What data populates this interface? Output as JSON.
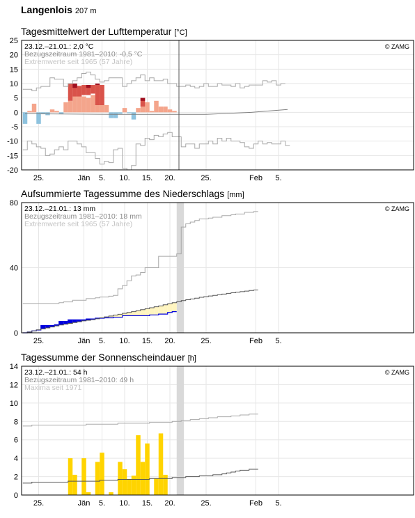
{
  "page": {
    "station": "Langenlois",
    "elevation": "207 m"
  },
  "colors": {
    "warm": "#f4a58c",
    "warm_extreme": "#d9534a",
    "warm_record": "#a01020",
    "cold": "#8ec2de",
    "precip": "#0000dd",
    "precip_surplus": "#fff5c0",
    "precip_deficit": "#dcefd2",
    "sun": "#ffd400",
    "ref_line": "#7f7f7f",
    "extreme_line": "#a8a8a8",
    "grid": "#e6e6e6",
    "today_band": "#d9d9d9"
  },
  "chart_data": [
    {
      "id": "temp",
      "type": "bar",
      "title": "Tagesmittelwert der Lufttemperatur",
      "unit": "[°C]",
      "copyright": "© ZAMG",
      "legend": [
        "23.12.–21.01.: 2,0 °C",
        "Bezugszeitraum 1981–2010: -0,5 °C",
        "Extremwerte seit 1965 (57 Jahre)"
      ],
      "ylim": [
        -20,
        25
      ],
      "yticks": [
        25,
        20,
        15,
        10,
        5,
        0,
        -5,
        -10,
        -15,
        -20
      ],
      "xlim": [
        0,
        75
      ],
      "xticks": [
        {
          "x": 3,
          "label": "25."
        },
        {
          "x": 13,
          "label": "Jän"
        },
        {
          "x": 17,
          "label": "5."
        },
        {
          "x": 22,
          "label": "10."
        },
        {
          "x": 27,
          "label": "15."
        },
        {
          "x": 32,
          "label": "20."
        },
        {
          "x": 40,
          "label": "25."
        },
        {
          "x": 51,
          "label": "Feb"
        },
        {
          "x": 56,
          "label": "5."
        }
      ],
      "today_x": 34,
      "x": [
        0,
        1,
        2,
        3,
        4,
        5,
        6,
        7,
        8,
        9,
        10,
        11,
        12,
        13,
        14,
        15,
        16,
        17,
        18,
        19,
        20,
        21,
        22,
        23,
        24,
        25,
        26,
        27,
        28,
        29,
        30,
        31,
        32,
        33
      ],
      "values": [
        -4,
        0.5,
        3,
        -4,
        -0.5,
        -1,
        1,
        0.5,
        -0.5,
        3.5,
        4,
        10,
        9,
        5.5,
        5,
        6,
        9.5,
        9.5,
        2.5,
        -2,
        -2,
        -0.5,
        1.5,
        -0.3,
        -2.5,
        1.5,
        3.5,
        3.5,
        0.5,
        4,
        2,
        2,
        1,
        0.5
      ],
      "extreme_bars": [
        {
          "x": 10,
          "base": 4,
          "top": 10
        },
        {
          "x": 11,
          "base": 5.5,
          "top": 10
        },
        {
          "x": 12,
          "base": 5.5,
          "top": 9.2
        },
        {
          "x": 13,
          "base": 6,
          "top": 9.5
        },
        {
          "x": 14,
          "base": 6,
          "top": 9.5
        },
        {
          "x": 15,
          "base": 6.5,
          "top": 9.5
        },
        {
          "x": 16,
          "base": 2.5,
          "top": 9.5
        },
        {
          "x": 17,
          "base": 2.5,
          "top": 9.5
        },
        {
          "x": 26,
          "base": 2,
          "top": 5
        }
      ],
      "record_bars": [
        {
          "x": 11,
          "base": 8.5,
          "top": 10
        },
        {
          "x": 14,
          "base": 8.5,
          "top": 9.5
        },
        {
          "x": 16,
          "base": 9.5,
          "top": 10
        },
        {
          "x": 26,
          "base": 4,
          "top": 5
        }
      ],
      "ref_line": [
        [
          0,
          -0.5
        ],
        [
          20,
          -0.7
        ],
        [
          40,
          -0.7
        ],
        [
          50,
          0
        ],
        [
          58,
          1
        ]
      ],
      "max_line": [
        8,
        8,
        7.5,
        8.5,
        9,
        9,
        12,
        11.5,
        11.5,
        9,
        10,
        11,
        12,
        13.5,
        14,
        13,
        11.5,
        10.5,
        11,
        12,
        12,
        12,
        9,
        10,
        11,
        12,
        13,
        11,
        12,
        11,
        11,
        11.5,
        10,
        10,
        9,
        9,
        9.5,
        9,
        8.5,
        9,
        10,
        9,
        9,
        10,
        9.5,
        9.5,
        9,
        10,
        8.5,
        9,
        9.5,
        9.5,
        9.5,
        11,
        10.5,
        11,
        9.5,
        10
      ],
      "min_line": [
        -13,
        -10,
        -11,
        -12,
        -12.5,
        -15,
        -14.5,
        -13,
        -12,
        -13,
        -10,
        -10,
        -11,
        -12,
        -14,
        -14,
        -16,
        -18,
        -17,
        -17.5,
        -13,
        -12.5,
        -19.5,
        -20,
        -18.5,
        -11,
        -11.5,
        -9,
        -9.5,
        -8,
        -8.5,
        -7.5,
        -7,
        -8.5,
        -8.5,
        -12,
        -11,
        -11,
        -12.5,
        -11,
        -11,
        -10,
        -11,
        -9,
        -10,
        -9,
        -10,
        -10,
        -10.5,
        -12,
        -12.5,
        -11,
        -10,
        -11,
        -10.5,
        -11,
        -11,
        -10,
        -11.5
      ]
    },
    {
      "id": "precip",
      "type": "area",
      "title": "Aufsummierte Tagessumme des Niederschlags",
      "unit": "[mm]",
      "copyright": "© ZAMG",
      "legend": [
        "23.12.–21.01.: 13 mm",
        "Bezugszeitraum 1981–2010: 18 mm",
        "Extremwerte seit 1965 (57 Jahre)"
      ],
      "ylim": [
        0,
        80
      ],
      "yticks": [
        80,
        40,
        0
      ],
      "xticks": [
        {
          "x": 3,
          "label": "25."
        },
        {
          "x": 13,
          "label": "Jän"
        },
        {
          "x": 17,
          "label": "5."
        },
        {
          "x": 22,
          "label": "10."
        },
        {
          "x": 27,
          "label": "15."
        },
        {
          "x": 32,
          "label": "20."
        },
        {
          "x": 40,
          "label": "25."
        },
        {
          "x": 51,
          "label": "Feb"
        },
        {
          "x": 56,
          "label": "5."
        }
      ],
      "today_x": 34,
      "cumulative": [
        0,
        0.5,
        1.2,
        1.7,
        4.5,
        4.5,
        4.5,
        5,
        7,
        7,
        8,
        8,
        8,
        8,
        8.5,
        8.5,
        9,
        9,
        9.2,
        9.2,
        9.5,
        9.5,
        10.5,
        10.5,
        10.5,
        10.5,
        10.5,
        10.5,
        11,
        11,
        11.5,
        11.5,
        12.5,
        13
      ],
      "reference": [
        0,
        0.5,
        1.2,
        1.8,
        2.4,
        3,
        3.6,
        4.2,
        4.8,
        5.3,
        5.8,
        6.3,
        6.8,
        7.3,
        7.7,
        8.1,
        8.6,
        9.2,
        9.8,
        10.3,
        10.9,
        11.4,
        12,
        12.5,
        13,
        13.6,
        14.2,
        14.8,
        15.4,
        16,
        16.5,
        17.2,
        17.9,
        18.5,
        19.1,
        19.8,
        20.3,
        20.8,
        21.3,
        21.8,
        22.2,
        22.6,
        23,
        23.4,
        23.8,
        24.2,
        24.6,
        25,
        25.3,
        25.6,
        26,
        26.3
      ],
      "max_line": [
        18,
        18,
        18,
        18,
        18,
        18,
        18,
        18,
        18.5,
        19,
        19,
        20,
        20,
        20,
        21,
        21,
        21.5,
        22,
        22,
        22.5,
        23,
        27,
        29,
        32,
        35,
        35.5,
        37,
        40,
        40,
        40,
        47,
        47,
        47,
        47,
        48.5,
        65,
        67,
        68,
        69,
        70,
        70,
        70.5,
        71,
        71,
        72,
        72,
        72.5,
        73,
        73,
        74,
        74,
        74.5
      ]
    },
    {
      "id": "sun",
      "type": "bar",
      "title": "Tagessumme der Sonnenscheindauer",
      "unit": "[h]",
      "copyright": "© ZAMG",
      "legend": [
        "23.12.–21.01.: 54 h",
        "Bezugszeitraum 1981–2010: 49 h",
        "Maxima seit 1971"
      ],
      "ylim": [
        0,
        14
      ],
      "yticks": [
        14,
        12,
        10,
        8,
        6,
        4,
        2,
        0
      ],
      "xticks": [
        {
          "x": 3,
          "label": "25."
        },
        {
          "x": 13,
          "label": "Jän"
        },
        {
          "x": 17,
          "label": "5."
        },
        {
          "x": 22,
          "label": "10."
        },
        {
          "x": 27,
          "label": "15."
        },
        {
          "x": 32,
          "label": "20."
        },
        {
          "x": 40,
          "label": "25."
        },
        {
          "x": 51,
          "label": "Feb"
        },
        {
          "x": 56,
          "label": "5."
        }
      ],
      "today_x": 34,
      "values": [
        0,
        0,
        0,
        0,
        0,
        0,
        0,
        0,
        0,
        0,
        4,
        2.2,
        0,
        4,
        0.3,
        0,
        3.6,
        4.6,
        0,
        0.3,
        0,
        3.6,
        2.8,
        1.7,
        2.1,
        6.5,
        3.6,
        5.6,
        0,
        1.8,
        6.7,
        2.2,
        0,
        0
      ],
      "reference": [
        1.3,
        1.3,
        1.4,
        1.4,
        1.4,
        1.4,
        1.4,
        1.4,
        1.4,
        1.4,
        1.5,
        1.5,
        1.5,
        1.5,
        1.5,
        1.5,
        1.5,
        1.6,
        1.6,
        1.6,
        1.6,
        1.7,
        1.7,
        1.7,
        1.7,
        1.7,
        1.7,
        1.7,
        1.8,
        1.8,
        1.8,
        1.8,
        1.8,
        1.9,
        1.9,
        1.9,
        2,
        2,
        2,
        2.1,
        2.1,
        2.1,
        2.2,
        2.2,
        2.3,
        2.4,
        2.5,
        2.6,
        2.7,
        2.7,
        2.8,
        2.8
      ],
      "max_line": [
        7.5,
        7.5,
        7.6,
        7.6,
        7.6,
        7.6,
        7.6,
        7.6,
        7.6,
        7.6,
        7.6,
        7.6,
        7.6,
        7.6,
        7.7,
        7.7,
        7.7,
        7.7,
        7.7,
        7.7,
        7.7,
        7.8,
        7.8,
        7.8,
        7.8,
        7.8,
        7.8,
        7.8,
        7.9,
        7.9,
        7.9,
        7.9,
        7.9,
        8.0,
        8.0,
        8.1,
        8.1,
        8.2,
        8.2,
        8.3,
        8.3,
        8.4,
        8.4,
        8.5,
        8.5,
        8.5,
        8.6,
        8.6,
        8.7,
        8.7,
        8.8,
        8.8
      ]
    }
  ]
}
